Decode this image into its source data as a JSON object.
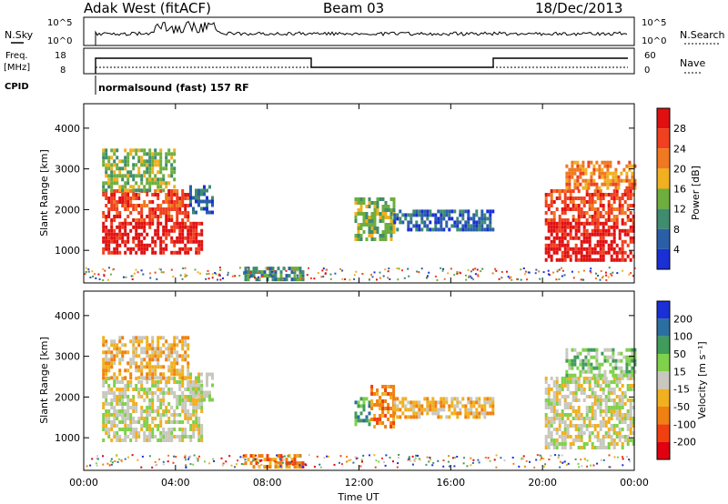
{
  "header": {
    "station": "Adak West (fitACF)",
    "beam": "Beam 03",
    "date": "18/Dec/2013"
  },
  "strip_labels": {
    "nsky": "N.Sky",
    "nsky_ticks": [
      "10^5",
      "10^0"
    ],
    "nsearch": "N.Search",
    "nsearch_ticks": [
      "10^5",
      "10^0"
    ],
    "freq_line1": "Freq.",
    "freq_line2": "[MHz]",
    "freq_ticks": [
      "18",
      "8"
    ],
    "nave": "Nave",
    "nave_ticks": [
      "60",
      "0"
    ],
    "cpid": "CPID",
    "cpid_text": "normalsound (fast) 157 RF"
  },
  "colors": {
    "power": [
      "#1a2fd6",
      "#2a5fa8",
      "#3f8c6e",
      "#6dae3e",
      "#f0b020",
      "#f07820",
      "#f04020",
      "#e01010"
    ],
    "velocity": [
      "#1a2fd6",
      "#2a6fa0",
      "#3f9c5a",
      "#7fd04a",
      "#c8c8c0",
      "#f0b020",
      "#f08010",
      "#f04010",
      "#e00010"
    ]
  },
  "chart_data": [
    {
      "type": "heatmap",
      "name": "power",
      "ylabel": "Slant Range [km]",
      "yticks": [
        1000,
        2000,
        3000,
        4000
      ],
      "ylim": [
        200,
        4600
      ],
      "xticks": [
        "00:00",
        "04:00",
        "08:00",
        "12:00",
        "16:00",
        "20:00",
        "00:00"
      ],
      "xlim": [
        0,
        24
      ],
      "colorbar_label": "Power [dB]",
      "colorbar_ticks": [
        "4",
        "8",
        "12",
        "16",
        "20",
        "24",
        "28"
      ],
      "regions": [
        {
          "t": [
            0.8,
            5.2
          ],
          "r": [
            900,
            1700
          ],
          "level": 7
        },
        {
          "t": [
            0.8,
            4.6
          ],
          "r": [
            1700,
            2500
          ],
          "level": 6
        },
        {
          "t": [
            0.8,
            3.9
          ],
          "r": [
            2500,
            3500
          ],
          "level": 3
        },
        {
          "t": [
            4.6,
            5.6
          ],
          "r": [
            1900,
            2600
          ],
          "level": 1
        },
        {
          "t": [
            7.0,
            9.5
          ],
          "r": [
            250,
            600
          ],
          "level": 2
        },
        {
          "t": [
            11.8,
            13.5
          ],
          "r": [
            1300,
            2300
          ],
          "level": 3
        },
        {
          "t": [
            13.5,
            17.8
          ],
          "r": [
            1500,
            2000
          ],
          "level": 1
        },
        {
          "t": [
            20.1,
            24.0
          ],
          "r": [
            800,
            1700
          ],
          "level": 7
        },
        {
          "t": [
            20.1,
            24.0
          ],
          "r": [
            1700,
            2500
          ],
          "level": 6
        },
        {
          "t": [
            21.0,
            24.0
          ],
          "r": [
            2500,
            3200
          ],
          "level": 5
        }
      ]
    },
    {
      "type": "heatmap",
      "name": "velocity",
      "ylabel": "Slant Range [km]",
      "yticks": [
        1000,
        2000,
        3000,
        4000
      ],
      "ylim": [
        200,
        4600
      ],
      "xticks": [
        "00:00",
        "04:00",
        "08:00",
        "12:00",
        "16:00",
        "20:00",
        "00:00"
      ],
      "xlim": [
        0,
        24
      ],
      "xlabel": "Time UT",
      "colorbar_label": "Velocity [m s⁻¹]",
      "colorbar_ticks": [
        "200",
        "100",
        "50",
        "15",
        "-15",
        "-50",
        "-100",
        "-200"
      ],
      "regions": [
        {
          "t": [
            0.8,
            5.2
          ],
          "r": [
            900,
            2500
          ],
          "level": 4
        },
        {
          "t": [
            0.8,
            4.6
          ],
          "r": [
            2500,
            3500
          ],
          "level": 5
        },
        {
          "t": [
            4.6,
            5.6
          ],
          "r": [
            1900,
            2600
          ],
          "level": 4
        },
        {
          "t": [
            7.0,
            9.5
          ],
          "r": [
            250,
            600
          ],
          "level": 6
        },
        {
          "t": [
            11.8,
            12.5
          ],
          "r": [
            1300,
            2000
          ],
          "level": 2
        },
        {
          "t": [
            12.5,
            13.5
          ],
          "r": [
            1300,
            2300
          ],
          "level": 6
        },
        {
          "t": [
            13.5,
            17.8
          ],
          "r": [
            1500,
            2000
          ],
          "level": 5
        },
        {
          "t": [
            20.1,
            24.0
          ],
          "r": [
            800,
            2500
          ],
          "level": 4
        },
        {
          "t": [
            21.0,
            24.0
          ],
          "r": [
            2500,
            3200
          ],
          "level": 3
        }
      ]
    }
  ]
}
